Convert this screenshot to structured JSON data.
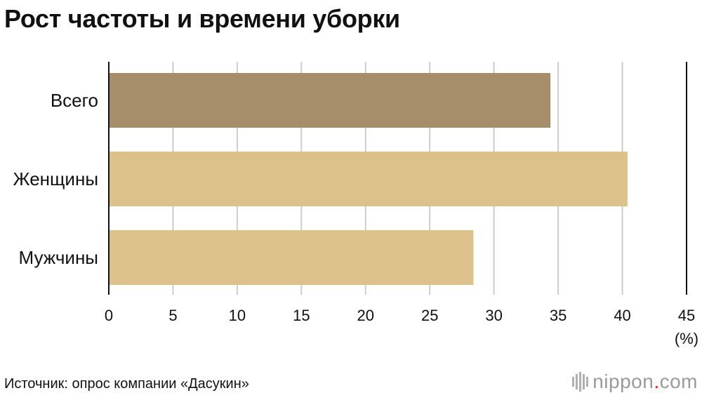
{
  "title": "Рост частоты и времени уборки",
  "source": "Источник: опрос компании «Дасукин»",
  "brand": {
    "name_left": "nippon",
    "dot": ".",
    "name_right": "com"
  },
  "colors": {
    "total": "#a68e6a",
    "gender": "#ddc18d",
    "grid": "#cccccc",
    "axis": "#111111",
    "brand_dot": "#e0261c"
  },
  "chart_data": {
    "type": "bar",
    "orientation": "horizontal",
    "categories": [
      "Всего",
      "Женщины",
      "Мужчины"
    ],
    "values": [
      34.4,
      40.4,
      28.4
    ],
    "bar_colors": [
      "#a68e6a",
      "#ddc18d",
      "#ddc18d"
    ],
    "xlim": [
      0,
      45
    ],
    "xticks": [
      "0",
      "5",
      "10",
      "15",
      "20",
      "25",
      "30",
      "35",
      "40",
      "45"
    ],
    "unit_label": "(%)",
    "grid": true
  }
}
